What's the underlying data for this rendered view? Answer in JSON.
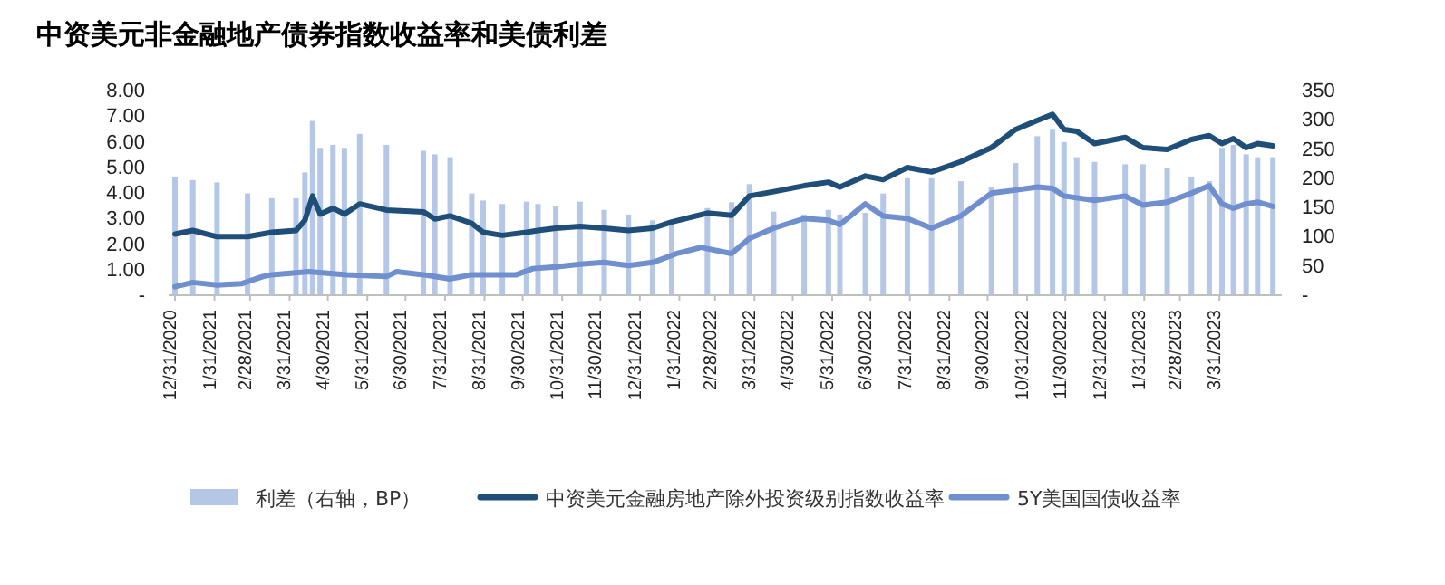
{
  "chart_data": {
    "type": "line",
    "title": "中资美元非金融地产债券指数收益率和美债利差",
    "xlim": [
      "2020-12-26",
      "2023-05-19"
    ],
    "xticks": [
      {
        "value": "2020-12-31",
        "label": "12/31/2020"
      },
      {
        "value": "2021-01-31",
        "label": "1/31/2021"
      },
      {
        "value": "2021-02-28",
        "label": "2/28/2021"
      },
      {
        "value": "2021-03-31",
        "label": "3/31/2021"
      },
      {
        "value": "2021-04-30",
        "label": "4/30/2021"
      },
      {
        "value": "2021-05-31",
        "label": "5/31/2021"
      },
      {
        "value": "2021-06-30",
        "label": "6/30/2021"
      },
      {
        "value": "2021-07-31",
        "label": "7/31/2021"
      },
      {
        "value": "2021-08-31",
        "label": "8/31/2021"
      },
      {
        "value": "2021-09-30",
        "label": "9/30/2021"
      },
      {
        "value": "2021-10-31",
        "label": "10/31/2021"
      },
      {
        "value": "2021-11-30",
        "label": "11/30/2021"
      },
      {
        "value": "2021-12-31",
        "label": "12/31/2021"
      },
      {
        "value": "2022-01-31",
        "label": "1/31/2022"
      },
      {
        "value": "2022-02-28",
        "label": "2/28/2022"
      },
      {
        "value": "2022-03-31",
        "label": "3/31/2022"
      },
      {
        "value": "2022-04-30",
        "label": "4/30/2022"
      },
      {
        "value": "2022-05-31",
        "label": "5/31/2022"
      },
      {
        "value": "2022-06-30",
        "label": "6/30/2022"
      },
      {
        "value": "2022-07-31",
        "label": "7/31/2022"
      },
      {
        "value": "2022-08-31",
        "label": "8/31/2022"
      },
      {
        "value": "2022-09-30",
        "label": "9/30/2022"
      },
      {
        "value": "2022-10-31",
        "label": "10/31/2022"
      },
      {
        "value": "2022-11-30",
        "label": "11/30/2022"
      },
      {
        "value": "2022-12-31",
        "label": "12/31/2022"
      },
      {
        "value": "2023-01-31",
        "label": "1/31/2023"
      },
      {
        "value": "2023-02-28",
        "label": "2/28/2023"
      },
      {
        "value": "2023-03-31",
        "label": "3/31/2023"
      }
    ],
    "ylim": [
      0,
      8
    ],
    "yticks": [
      {
        "value": 0,
        "label": "-"
      },
      {
        "value": 1,
        "label": "1.00"
      },
      {
        "value": 2,
        "label": "2.00"
      },
      {
        "value": 3,
        "label": "3.00"
      },
      {
        "value": 4,
        "label": "4.00"
      },
      {
        "value": 5,
        "label": "5.00"
      },
      {
        "value": 6,
        "label": "6.00"
      },
      {
        "value": 7,
        "label": "7.00"
      },
      {
        "value": 8,
        "label": "8.00"
      }
    ],
    "y2lim": [
      0,
      350
    ],
    "y2ticks": [
      {
        "value": 0,
        "label": "-"
      },
      50,
      100,
      150,
      200,
      250,
      300,
      350
    ],
    "legend": "bottom",
    "grid": false,
    "series": [
      {
        "name": "利差（右轴，BP）",
        "type": "bar",
        "axis": "y2",
        "color": "#b4c7e7",
        "x": [
          "2020-12-31",
          "2021-01-14",
          "2021-02-02",
          "2021-02-26",
          "2021-03-17",
          "2021-04-05",
          "2021-04-12",
          "2021-04-18",
          "2021-04-24",
          "2021-05-04",
          "2021-05-13",
          "2021-05-25",
          "2021-06-15",
          "2021-07-14",
          "2021-07-23",
          "2021-08-04",
          "2021-08-21",
          "2021-08-30",
          "2021-09-14",
          "2021-10-03",
          "2021-10-12",
          "2021-10-26",
          "2021-11-14",
          "2021-12-03",
          "2021-12-22",
          "2022-01-10",
          "2022-01-25",
          "2022-02-22",
          "2022-03-13",
          "2022-03-27",
          "2022-04-15",
          "2022-05-09",
          "2022-05-28",
          "2022-06-06",
          "2022-06-26",
          "2022-07-10",
          "2022-07-29",
          "2022-08-17",
          "2022-09-09",
          "2022-10-03",
          "2022-10-22",
          "2022-11-08",
          "2022-11-20",
          "2022-11-29",
          "2022-12-09",
          "2022-12-23",
          "2023-01-16",
          "2023-01-30",
          "2023-02-18",
          "2023-03-09",
          "2023-03-23",
          "2023-04-02",
          "2023-04-11",
          "2023-04-21",
          "2023-04-30",
          "2023-05-12"
        ],
        "values": [
          203,
          197,
          193,
          174,
          166,
          166,
          210,
          298,
          252,
          257,
          252,
          276,
          257,
          247,
          241,
          236,
          174,
          162,
          156,
          160,
          156,
          152,
          160,
          146,
          138,
          128,
          123,
          149,
          159,
          190,
          143,
          138,
          146,
          138,
          141,
          174,
          200,
          200,
          195,
          185,
          226,
          272,
          283,
          262,
          236,
          228,
          224,
          224,
          218,
          203,
          195,
          252,
          257,
          241,
          236,
          236
        ]
      },
      {
        "name": "中资美元金融房地产除外投资级别指数收益率",
        "color": "#1f4e79",
        "x": [
          "2020-12-31",
          "2021-01-14",
          "2021-02-02",
          "2021-02-26",
          "2021-03-17",
          "2021-04-05",
          "2021-04-12",
          "2021-04-18",
          "2021-04-24",
          "2021-05-04",
          "2021-05-13",
          "2021-05-25",
          "2021-06-15",
          "2021-07-14",
          "2021-07-23",
          "2021-08-04",
          "2021-08-21",
          "2021-08-30",
          "2021-09-14",
          "2021-10-03",
          "2021-10-12",
          "2021-10-26",
          "2021-11-14",
          "2021-12-03",
          "2021-12-22",
          "2022-01-10",
          "2022-01-25",
          "2022-02-22",
          "2022-03-13",
          "2022-03-27",
          "2022-04-15",
          "2022-05-09",
          "2022-05-28",
          "2022-06-06",
          "2022-06-26",
          "2022-07-10",
          "2022-07-29",
          "2022-08-17",
          "2022-09-09",
          "2022-10-03",
          "2022-10-22",
          "2022-11-08",
          "2022-11-20",
          "2022-11-29",
          "2022-12-09",
          "2022-12-23",
          "2023-01-16",
          "2023-01-30",
          "2023-02-18",
          "2023-03-09",
          "2023-03-23",
          "2023-04-02",
          "2023-04-11",
          "2023-04-21",
          "2023-04-30",
          "2023-05-12"
        ],
        "values": [
          2.39,
          2.53,
          2.29,
          2.29,
          2.46,
          2.53,
          2.93,
          3.88,
          3.17,
          3.4,
          3.17,
          3.57,
          3.33,
          3.26,
          2.98,
          3.1,
          2.81,
          2.46,
          2.34,
          2.46,
          2.53,
          2.62,
          2.69,
          2.62,
          2.53,
          2.62,
          2.86,
          3.21,
          3.12,
          3.88,
          4.05,
          4.28,
          4.42,
          4.23,
          4.66,
          4.52,
          4.99,
          4.82,
          5.22,
          5.77,
          6.48,
          6.83,
          7.07,
          6.48,
          6.41,
          5.93,
          6.17,
          5.77,
          5.7,
          6.09,
          6.24,
          5.93,
          6.12,
          5.77,
          5.93,
          5.84
        ]
      },
      {
        "name": "5Y美国国债收益率",
        "color": "#6f8fcf",
        "x": [
          "2020-12-31",
          "2021-01-14",
          "2021-02-02",
          "2021-02-21",
          "2021-03-10",
          "2021-03-17",
          "2021-04-15",
          "2021-05-15",
          "2021-06-15",
          "2021-06-23",
          "2021-07-14",
          "2021-08-04",
          "2021-08-21",
          "2021-09-25",
          "2021-10-08",
          "2021-10-26",
          "2021-11-14",
          "2021-12-03",
          "2021-12-22",
          "2022-01-10",
          "2022-01-29",
          "2022-02-17",
          "2022-02-22",
          "2022-03-13",
          "2022-03-27",
          "2022-04-15",
          "2022-05-09",
          "2022-05-28",
          "2022-06-06",
          "2022-06-26",
          "2022-07-10",
          "2022-07-29",
          "2022-08-17",
          "2022-09-09",
          "2022-10-03",
          "2022-10-22",
          "2022-11-08",
          "2022-11-20",
          "2022-11-29",
          "2022-12-23",
          "2023-01-16",
          "2023-01-30",
          "2023-02-18",
          "2023-03-09",
          "2023-03-23",
          "2023-04-02",
          "2023-04-11",
          "2023-04-21",
          "2023-04-30",
          "2023-05-12"
        ],
        "values": [
          0.33,
          0.5,
          0.4,
          0.45,
          0.73,
          0.8,
          0.92,
          0.8,
          0.73,
          0.92,
          0.8,
          0.64,
          0.8,
          0.8,
          1.04,
          1.11,
          1.21,
          1.28,
          1.16,
          1.28,
          1.63,
          1.87,
          1.82,
          1.63,
          2.22,
          2.62,
          3.0,
          2.93,
          2.76,
          3.57,
          3.1,
          3.0,
          2.62,
          3.1,
          3.99,
          4.11,
          4.23,
          4.18,
          3.88,
          3.71,
          3.88,
          3.52,
          3.64,
          3.99,
          4.28,
          3.57,
          3.4,
          3.57,
          3.64,
          3.47
        ]
      }
    ]
  }
}
